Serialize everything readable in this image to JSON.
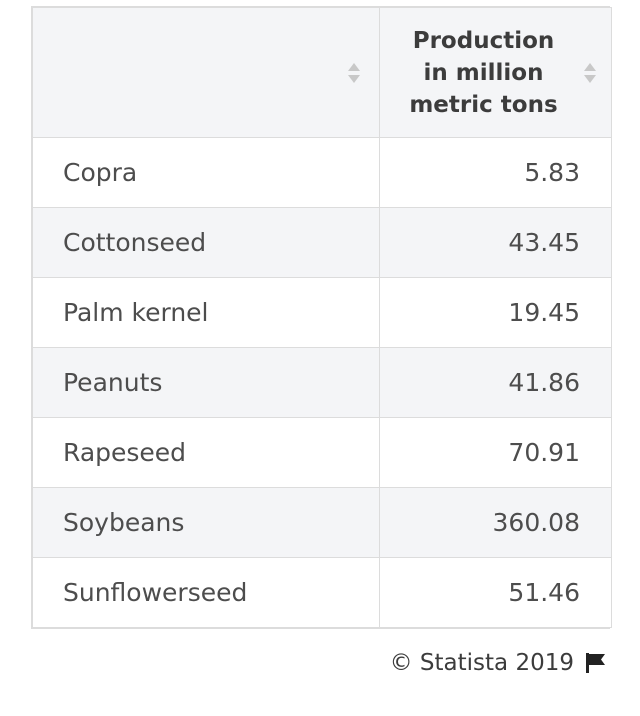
{
  "table": {
    "header": {
      "col1": "",
      "col2_lines": [
        "Production",
        "in million",
        "metric tons"
      ]
    },
    "rows": [
      {
        "name": "Copra",
        "value": "5.83"
      },
      {
        "name": "Cottonseed",
        "value": "43.45"
      },
      {
        "name": "Palm kernel",
        "value": "19.45"
      },
      {
        "name": "Peanuts",
        "value": "41.86"
      },
      {
        "name": "Rapeseed",
        "value": "70.91"
      },
      {
        "name": "Soybeans",
        "value": "360.08"
      },
      {
        "name": "Sunflowerseed",
        "value": "51.46"
      }
    ]
  },
  "footer": {
    "credit": "© Statista 2019",
    "icon": "flag-icon"
  },
  "chart_data": {
    "type": "table",
    "columns": [
      "",
      "Production in million metric tons"
    ],
    "categories": [
      "Copra",
      "Cottonseed",
      "Palm kernel",
      "Peanuts",
      "Rapeseed",
      "Soybeans",
      "Sunflowerseed"
    ],
    "values": [
      5.83,
      43.45,
      19.45,
      41.86,
      70.91,
      360.08,
      51.46
    ]
  }
}
